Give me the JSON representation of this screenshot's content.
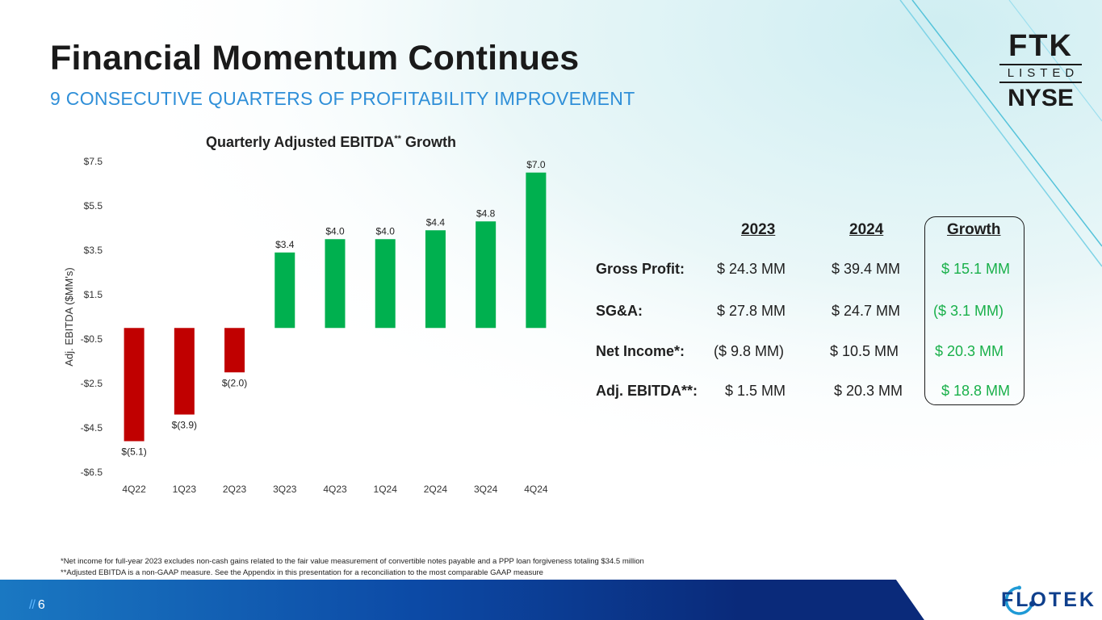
{
  "header": {
    "title": "Financial Momentum Continues",
    "subtitle": "9 CONSECUTIVE QUARTERS OF PROFITABILITY IMPROVEMENT"
  },
  "logo_ftk": {
    "line1": "FTK",
    "line2": "LISTED",
    "line3": "NYSE"
  },
  "chart_title": {
    "main": "Quarterly Adjusted EBITDA",
    "sup": "**",
    "tail": " Growth"
  },
  "chart_data": {
    "type": "bar",
    "title": "Quarterly Adjusted EBITDA** Growth",
    "xlabel": "",
    "ylabel": "Adj. EBITDA ($MM's)",
    "categories": [
      "4Q22",
      "1Q23",
      "2Q23",
      "3Q23",
      "4Q23",
      "1Q24",
      "2Q24",
      "3Q24",
      "4Q24"
    ],
    "values": [
      -5.1,
      -3.9,
      -2.0,
      3.4,
      4.0,
      4.0,
      4.4,
      4.8,
      7.0
    ],
    "data_labels": [
      "$(5.1)",
      "$(3.9)",
      "$(2.0)",
      "$3.4",
      "$4.0",
      "$4.0",
      "$4.4",
      "$4.8",
      "$7.0"
    ],
    "yticks": [
      7.5,
      5.5,
      3.5,
      1.5,
      -0.5,
      -2.5,
      -4.5,
      -6.5
    ],
    "ytick_labels": [
      "$7.5",
      "$5.5",
      "$3.5",
      "$1.5",
      "-$0.5",
      "-$2.5",
      "-$4.5",
      "-$6.5"
    ],
    "ylim": [
      -6.5,
      7.5
    ],
    "grid": true,
    "colors": {
      "positive": "#00b04f",
      "negative": "#c00000"
    }
  },
  "table": {
    "headers": {
      "col2023": "2023",
      "col2024": "2024",
      "growth": "Growth"
    },
    "rows": [
      {
        "label": "Gross Profit:",
        "v2023": "$ 24.3 MM",
        "v2024": "$ 39.4 MM",
        "growth": "$ 15.1 MM"
      },
      {
        "label": "SG&A:",
        "v2023": "$ 27.8 MM",
        "v2024": "$ 24.7 MM",
        "growth": "($ 3.1 MM)"
      },
      {
        "label": "Net Income*:",
        "v2023": "($ 9.8 MM)",
        "v2024": "$ 10.5 MM",
        "growth": "$ 20.3 MM"
      },
      {
        "label": "Adj. EBITDA**:",
        "v2023": "$ 1.5 MM",
        "v2024": "$ 20.3 MM",
        "growth": "$ 18.8 MM"
      }
    ]
  },
  "footnotes": [
    "*Net income for full-year 2023 excludes non-cash gains related to the fair value measurement of convertible notes payable and a PPP loan forgiveness totaling $34.5 million",
    "**Adjusted EBITDA is a non-GAAP measure.  See the Appendix in this presentation for a reconciliation to the most comparable GAAP measure"
  ],
  "footer": {
    "slash": "//",
    "page_number": "6",
    "brand": "FLOTEK"
  },
  "colors": {
    "accent_blue": "#2f8fd8",
    "navy": "#0f3f8c",
    "growth_green": "#19b04a"
  }
}
